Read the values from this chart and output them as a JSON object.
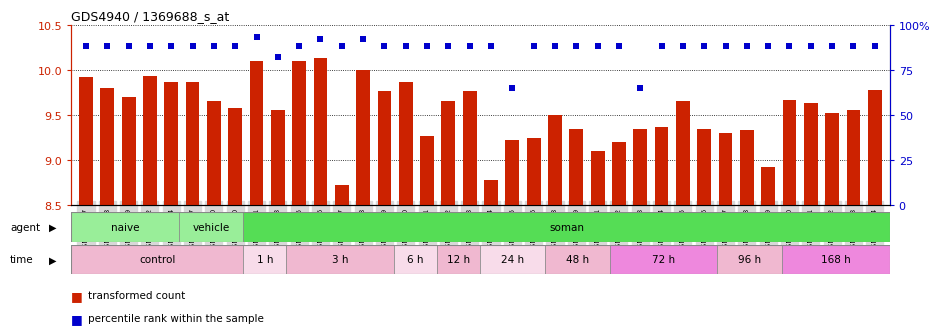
{
  "title": "GDS4940 / 1369688_s_at",
  "gsm_labels": [
    "GSM338857",
    "GSM338858",
    "GSM338859",
    "GSM338862",
    "GSM338864",
    "GSM338877",
    "GSM338880",
    "GSM338860",
    "GSM338861",
    "GSM338863",
    "GSM338865",
    "GSM338866",
    "GSM338867",
    "GSM338868",
    "GSM338869",
    "GSM338870",
    "GSM338871",
    "GSM338872",
    "GSM338873",
    "GSM338874",
    "GSM338875",
    "GSM338876",
    "GSM338878",
    "GSM338879",
    "GSM338881",
    "GSM338882",
    "GSM338883",
    "GSM338884",
    "GSM338885",
    "GSM338886",
    "GSM338887",
    "GSM338888",
    "GSM338889",
    "GSM338890",
    "GSM338891",
    "GSM338892",
    "GSM338893",
    "GSM338894"
  ],
  "bar_values": [
    9.92,
    9.8,
    9.7,
    9.93,
    9.87,
    9.87,
    9.65,
    9.58,
    10.1,
    9.56,
    10.1,
    10.13,
    8.72,
    10.0,
    9.77,
    9.87,
    9.27,
    9.65,
    9.77,
    8.78,
    9.22,
    9.25,
    9.5,
    9.35,
    9.1,
    9.2,
    9.35,
    9.37,
    9.65,
    9.35,
    9.3,
    9.33,
    8.92,
    9.67,
    9.63,
    9.52,
    9.55,
    9.78
  ],
  "percentile_values": [
    88,
    88,
    88,
    88,
    88,
    88,
    88,
    88,
    93,
    82,
    88,
    92,
    88,
    92,
    88,
    88,
    88,
    88,
    88,
    88,
    65,
    88,
    88,
    88,
    88,
    88,
    65,
    88,
    88,
    88,
    88,
    88,
    88,
    88,
    88,
    88,
    88,
    88
  ],
  "bar_color": "#cc2200",
  "dot_color": "#0000cc",
  "ylim_left": [
    8.5,
    10.5
  ],
  "ylim_right": [
    0,
    100
  ],
  "yticks_left": [
    8.5,
    9.0,
    9.5,
    10.0,
    10.5
  ],
  "yticks_right": [
    0,
    25,
    50,
    75,
    100
  ],
  "right_axis_top_label": "100%",
  "agent_groups": [
    {
      "label": "naive",
      "start": 0,
      "end": 5,
      "color": "#99ee99"
    },
    {
      "label": "vehicle",
      "start": 5,
      "end": 8,
      "color": "#99ee99"
    },
    {
      "label": "soman",
      "start": 8,
      "end": 38,
      "color": "#55dd55"
    }
  ],
  "time_groups": [
    {
      "label": "control",
      "start": 0,
      "end": 8,
      "color": "#f0b8d0"
    },
    {
      "label": "1 h",
      "start": 8,
      "end": 10,
      "color": "#f8dcea"
    },
    {
      "label": "3 h",
      "start": 10,
      "end": 15,
      "color": "#f0b8d0"
    },
    {
      "label": "6 h",
      "start": 15,
      "end": 17,
      "color": "#f8dcea"
    },
    {
      "label": "12 h",
      "start": 17,
      "end": 19,
      "color": "#f0b8d0"
    },
    {
      "label": "24 h",
      "start": 19,
      "end": 22,
      "color": "#f8dcea"
    },
    {
      "label": "48 h",
      "start": 22,
      "end": 25,
      "color": "#f0b8d0"
    },
    {
      "label": "72 h",
      "start": 25,
      "end": 30,
      "color": "#ee88dd"
    },
    {
      "label": "96 h",
      "start": 30,
      "end": 33,
      "color": "#f0b8d0"
    },
    {
      "label": "168 h",
      "start": 33,
      "end": 38,
      "color": "#ee88dd"
    }
  ],
  "left_axis_color": "#cc2200",
  "right_axis_color": "#0000cc",
  "legend_red_label": "transformed count",
  "legend_blue_label": "percentile rank within the sample",
  "xtick_bg_color": "#d8d8d8",
  "grid_color": "black",
  "bar_width": 0.65
}
